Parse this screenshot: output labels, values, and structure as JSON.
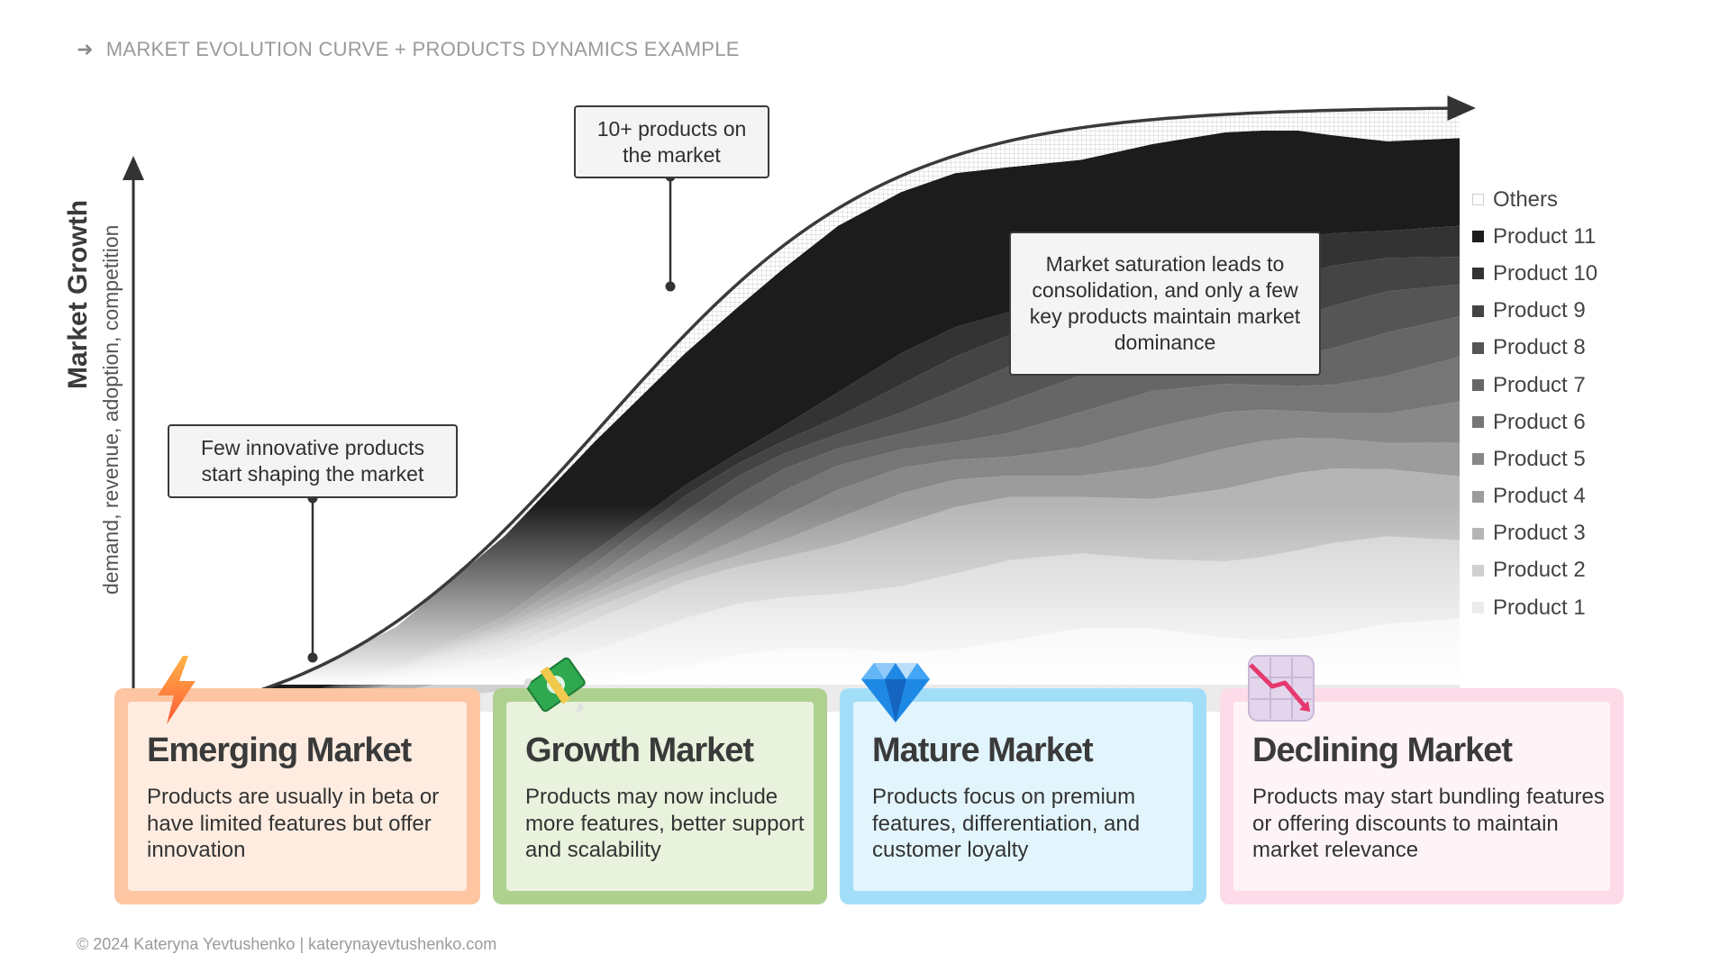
{
  "header": {
    "title": "MARKET EVOLUTION CURVE + PRODUCTS DYNAMICS EXAMPLE",
    "arrow_icon": "arrow-right-icon"
  },
  "axis": {
    "title": "Market Growth",
    "subtitle": "demand, revenue, adoption, competition"
  },
  "callouts": {
    "emerging": "Few innovative products start shaping the market",
    "growth": "10+ products on the market",
    "saturation": "Market saturation leads to consolidation, and only a few key products maintain market dominance"
  },
  "legend": [
    {
      "label": "Others",
      "color": "#e6e6e6"
    },
    {
      "label": "Product 11",
      "color": "#1c1c1c"
    },
    {
      "label": "Product 10",
      "color": "#333333"
    },
    {
      "label": "Product 9",
      "color": "#444444"
    },
    {
      "label": "Product 8",
      "color": "#555555"
    },
    {
      "label": "Product 7",
      "color": "#666666"
    },
    {
      "label": "Product 6",
      "color": "#767676"
    },
    {
      "label": "Product 5",
      "color": "#888888"
    },
    {
      "label": "Product 4",
      "color": "#9c9c9c"
    },
    {
      "label": "Product 3",
      "color": "#b5b5b5"
    },
    {
      "label": "Product 2",
      "color": "#d0d0d0"
    },
    {
      "label": "Product 1",
      "color": "#ebebeb"
    }
  ],
  "cards": [
    {
      "title": "Emerging Market",
      "desc": "Products are usually in beta or have limited features but offer innovation",
      "outer": "#fdc5a2",
      "inner": "#feece0",
      "icon": "lightning-icon"
    },
    {
      "title": "Growth Market",
      "desc": "Products may now include more features, better support and scalability",
      "outer": "#aed18f",
      "inner": "#e9f2dd",
      "icon": "money-icon"
    },
    {
      "title": "Mature Market",
      "desc": "Products focus on premium features, differentiation, and customer loyalty",
      "outer": "#a3def9",
      "inner": "#e2f5fd",
      "icon": "diamond-icon"
    },
    {
      "title": "Declining Market",
      "desc": "Products may start bundling features or offering discounts to maintain market relevance",
      "outer": "#fddbe9",
      "inner": "#fef4f8",
      "icon": "chart-down-icon"
    }
  ],
  "footer": {
    "text": "© 2024 Kateryna Yevtushenko | katerynayevtushenko.com"
  }
}
